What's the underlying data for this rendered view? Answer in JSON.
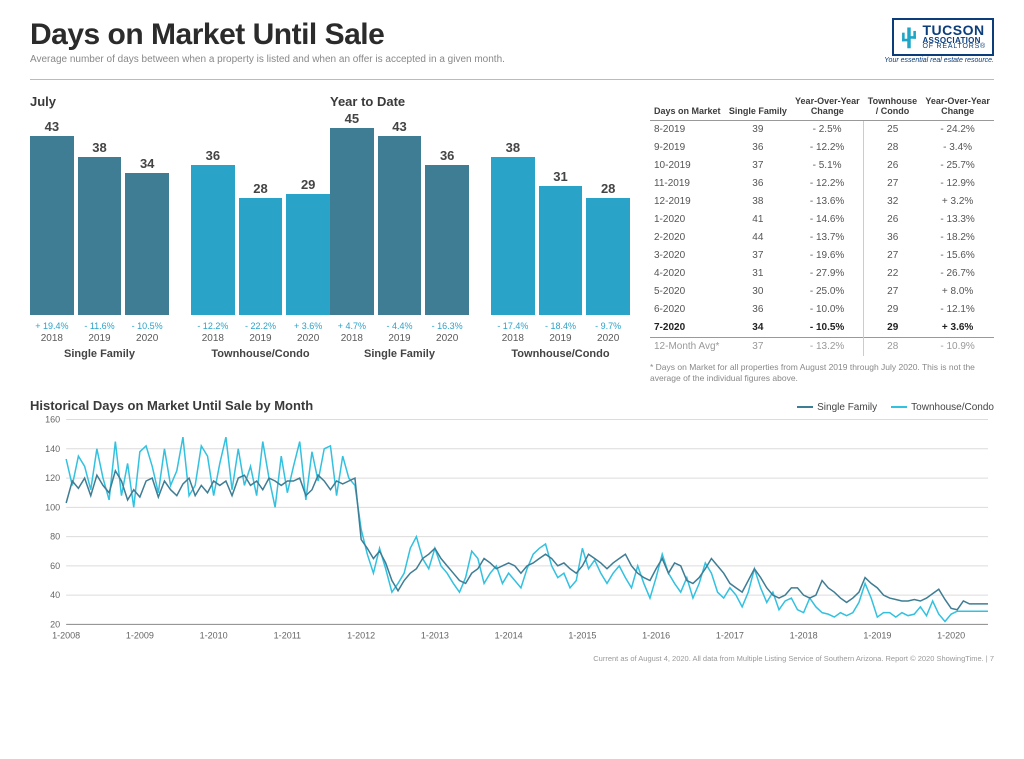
{
  "header": {
    "title": "Days on Market Until Sale",
    "subtitle": "Average number of days between when a property is listed and when an offer is accepted in a given month.",
    "logo": {
      "line1": "TUCSON",
      "line2": "ASSOCIATION",
      "line3": "OF REALTORS®",
      "tagline": "Your essential real estate resource."
    }
  },
  "charts": {
    "july": {
      "title": "July",
      "clusters": [
        {
          "label": "Single Family",
          "bars": [
            {
              "year": "2018",
              "value": 43,
              "pct": "+ 19.4%",
              "color": "#3f7d94"
            },
            {
              "year": "2019",
              "value": 38,
              "pct": "- 11.6%",
              "color": "#3f7d94"
            },
            {
              "year": "2020",
              "value": 34,
              "pct": "- 10.5%",
              "color": "#3f7d94"
            }
          ]
        },
        {
          "label": "Townhouse/Condo",
          "bars": [
            {
              "year": "2018",
              "value": 36,
              "pct": "- 12.2%",
              "color": "#2aa3c9"
            },
            {
              "year": "2019",
              "value": 28,
              "pct": "- 22.2%",
              "color": "#2aa3c9"
            },
            {
              "year": "2020",
              "value": 29,
              "pct": "+ 3.6%",
              "color": "#2aa3c9"
            }
          ]
        }
      ],
      "ymax": 48
    },
    "ytd": {
      "title": "Year to Date",
      "clusters": [
        {
          "label": "Single Family",
          "bars": [
            {
              "year": "2018",
              "value": 45,
              "pct": "+ 4.7%",
              "color": "#3f7d94"
            },
            {
              "year": "2019",
              "value": 43,
              "pct": "- 4.4%",
              "color": "#3f7d94"
            },
            {
              "year": "2020",
              "value": 36,
              "pct": "- 16.3%",
              "color": "#3f7d94"
            }
          ]
        },
        {
          "label": "Townhouse/Condo",
          "bars": [
            {
              "year": "2018",
              "value": 38,
              "pct": "- 17.4%",
              "color": "#2aa3c9"
            },
            {
              "year": "2019",
              "value": 31,
              "pct": "- 18.4%",
              "color": "#2aa3c9"
            },
            {
              "year": "2020",
              "value": 28,
              "pct": "- 9.7%",
              "color": "#2aa3c9"
            }
          ]
        }
      ],
      "ymax": 48
    }
  },
  "table": {
    "columns": [
      "Days on Market",
      "Single Family",
      "Year-Over-Year Change",
      "Townhouse / Condo",
      "Year-Over-Year Change"
    ],
    "rows": [
      [
        "8-2019",
        "39",
        "- 2.5%",
        "25",
        "- 24.2%"
      ],
      [
        "9-2019",
        "36",
        "- 12.2%",
        "28",
        "- 3.4%"
      ],
      [
        "10-2019",
        "37",
        "- 5.1%",
        "26",
        "- 25.7%"
      ],
      [
        "11-2019",
        "36",
        "- 12.2%",
        "27",
        "- 12.9%"
      ],
      [
        "12-2019",
        "38",
        "- 13.6%",
        "32",
        "+ 3.2%"
      ],
      [
        "1-2020",
        "41",
        "- 14.6%",
        "26",
        "- 13.3%"
      ],
      [
        "2-2020",
        "44",
        "- 13.7%",
        "36",
        "- 18.2%"
      ],
      [
        "3-2020",
        "37",
        "- 19.6%",
        "27",
        "- 15.6%"
      ],
      [
        "4-2020",
        "31",
        "- 27.9%",
        "22",
        "- 26.7%"
      ],
      [
        "5-2020",
        "30",
        "- 25.0%",
        "27",
        "+ 8.0%"
      ],
      [
        "6-2020",
        "36",
        "- 10.0%",
        "29",
        "- 12.1%"
      ],
      [
        "7-2020",
        "34",
        "- 10.5%",
        "29",
        "+ 3.6%"
      ]
    ],
    "avg_row": [
      "12-Month Avg*",
      "37",
      "- 13.2%",
      "28",
      "- 10.9%"
    ],
    "footnote": "* Days on Market for all properties from August 2019 through July 2020. This is not the average of the individual figures above."
  },
  "line_chart": {
    "title": "Historical Days on Market Until Sale by Month",
    "legend": [
      {
        "label": "Single Family",
        "color": "#3f7d94"
      },
      {
        "label": "Townhouse/Condo",
        "color": "#33c1e0"
      }
    ],
    "y": {
      "min": 20,
      "max": 160,
      "step": 20
    },
    "x_labels": [
      "1-2008",
      "1-2009",
      "1-2010",
      "1-2011",
      "1-2012",
      "1-2013",
      "1-2014",
      "1-2015",
      "1-2016",
      "1-2017",
      "1-2018",
      "1-2019",
      "1-2020"
    ],
    "n_points": 151,
    "series": {
      "single_family": [
        103,
        118,
        113,
        120,
        108,
        122,
        115,
        110,
        125,
        118,
        105,
        112,
        107,
        118,
        120,
        107,
        118,
        112,
        108,
        116,
        120,
        108,
        115,
        110,
        118,
        115,
        118,
        108,
        120,
        122,
        115,
        118,
        112,
        120,
        118,
        115,
        118,
        118,
        120,
        108,
        112,
        122,
        118,
        112,
        118,
        116,
        118,
        120,
        78,
        72,
        65,
        70,
        62,
        50,
        43,
        50,
        55,
        58,
        65,
        68,
        72,
        65,
        60,
        55,
        50,
        48,
        55,
        58,
        65,
        62,
        58,
        60,
        62,
        60,
        55,
        60,
        62,
        65,
        68,
        65,
        60,
        62,
        58,
        55,
        60,
        68,
        65,
        62,
        58,
        62,
        65,
        68,
        60,
        55,
        52,
        50,
        58,
        65,
        55,
        62,
        60,
        50,
        48,
        52,
        58,
        65,
        60,
        55,
        48,
        45,
        42,
        50,
        58,
        52,
        45,
        40,
        38,
        40,
        45,
        45,
        40,
        38,
        40,
        50,
        45,
        42,
        38,
        35,
        38,
        42,
        52,
        48,
        45,
        40,
        38,
        37,
        36,
        36,
        37,
        36,
        38,
        41,
        44,
        37,
        31,
        30,
        36,
        34,
        34,
        34,
        34
      ],
      "townhouse_condo": [
        133,
        115,
        135,
        128,
        112,
        140,
        120,
        105,
        145,
        108,
        130,
        100,
        138,
        142,
        128,
        110,
        140,
        115,
        125,
        148,
        108,
        115,
        142,
        135,
        108,
        130,
        148,
        112,
        140,
        115,
        128,
        108,
        145,
        120,
        100,
        135,
        110,
        128,
        145,
        105,
        138,
        118,
        140,
        142,
        108,
        135,
        120,
        115,
        85,
        68,
        55,
        72,
        58,
        42,
        48,
        55,
        72,
        80,
        65,
        58,
        72,
        60,
        55,
        48,
        42,
        52,
        70,
        65,
        48,
        55,
        60,
        48,
        55,
        50,
        45,
        58,
        68,
        72,
        75,
        60,
        52,
        55,
        45,
        50,
        72,
        58,
        64,
        55,
        48,
        55,
        60,
        52,
        45,
        60,
        48,
        38,
        52,
        68,
        55,
        48,
        42,
        52,
        38,
        48,
        62,
        55,
        42,
        38,
        45,
        40,
        32,
        42,
        58,
        45,
        35,
        42,
        30,
        36,
        38,
        30,
        28,
        38,
        32,
        28,
        27,
        25,
        28,
        26,
        28,
        35,
        48,
        38,
        25,
        28,
        28,
        25,
        28,
        26,
        27,
        32,
        26,
        36,
        27,
        22,
        27,
        29,
        29,
        29,
        29,
        29,
        29
      ]
    },
    "grid_color": "#dcdcdc",
    "axis_color": "#888",
    "background": "#ffffff",
    "line_width": 1.5
  },
  "pageFooter": "Current as of August 4, 2020. All data from Multiple Listing Service of Southern Arizona. Report © 2020 ShowingTime.  |  7"
}
